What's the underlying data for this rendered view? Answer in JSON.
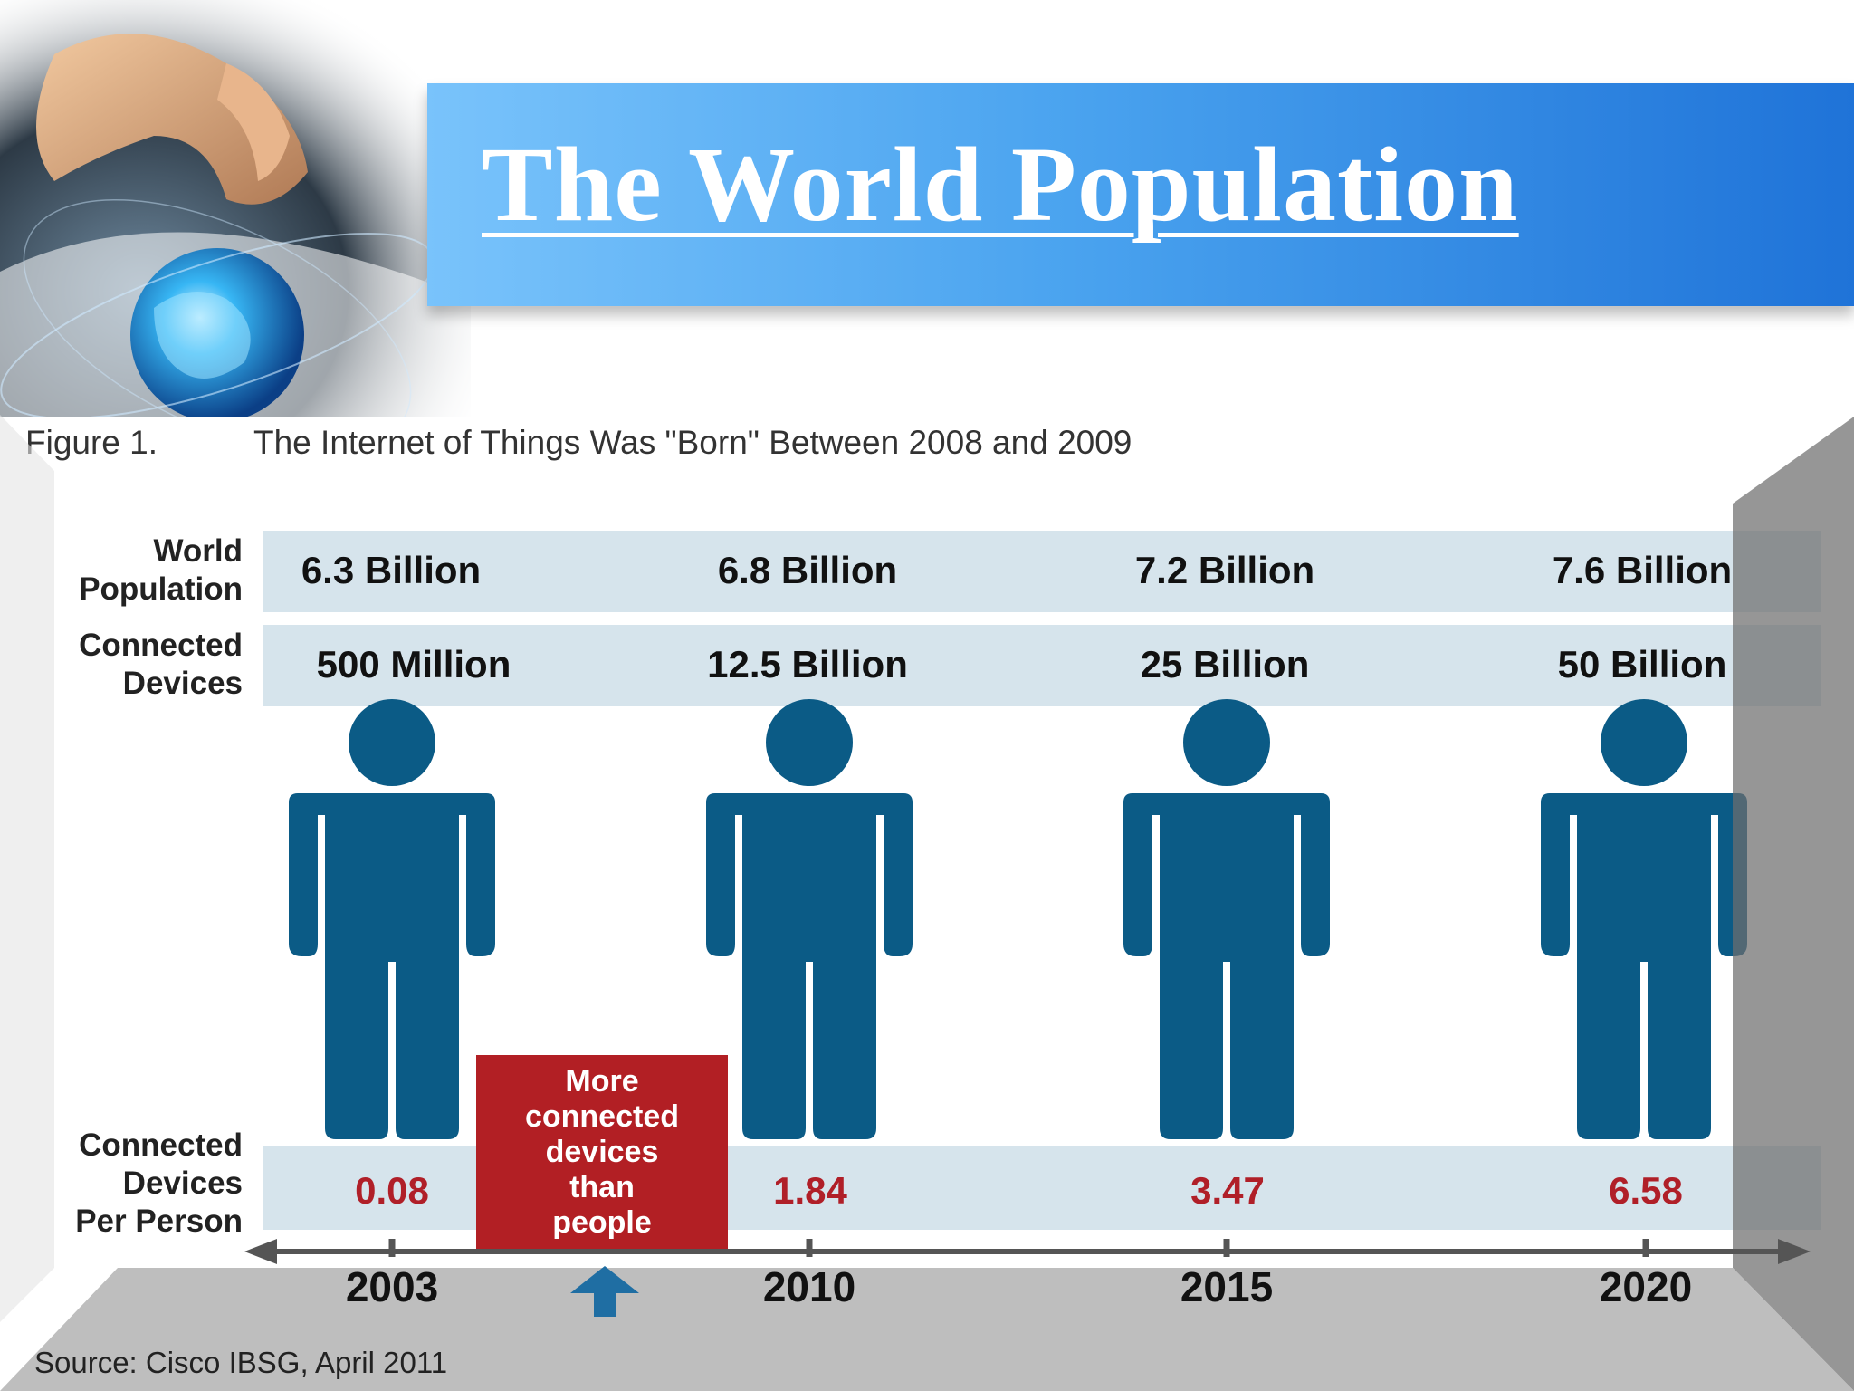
{
  "slide": {
    "title": " The World Population"
  },
  "figure": {
    "caption_number": "Figure 1.",
    "caption_title": "The Internet of Things Was \"Born\" Between 2008 and 2009",
    "source": "Source: Cisco IBSG, April 2011"
  },
  "colors": {
    "figure_blue": "#0b5b86",
    "band_fill": "#d6e4ec",
    "ratio_red": "#b01f28",
    "callout_red": "#b21f24",
    "title_band": "#3f9bee"
  },
  "chart_data": {
    "type": "table",
    "title": "The Internet of Things Was \"Born\" Between 2008 and 2009",
    "row_labels": {
      "population": [
        "World",
        "Population"
      ],
      "devices": [
        "Connected",
        "Devices"
      ],
      "per_person": [
        "Connected",
        "Devices",
        "Per Person"
      ]
    },
    "categories": [
      "2003",
      "2010",
      "2015",
      "2020"
    ],
    "series": [
      {
        "name": "World Population",
        "labels": [
          "6.3 Billion",
          "6.8 Billion",
          "7.2 Billion",
          "7.6 Billion"
        ],
        "values": [
          6.3,
          6.8,
          7.2,
          7.6
        ],
        "unit": "billion"
      },
      {
        "name": "Connected Devices",
        "labels": [
          "500 Million",
          "12.5 Billion",
          "25 Billion",
          "50 Billion"
        ],
        "values": [
          0.5,
          12.5,
          25,
          50
        ],
        "unit": "billion"
      },
      {
        "name": "Connected Devices Per Person",
        "labels": [
          "0.08",
          "1.84",
          "3.47",
          "6.58"
        ],
        "values": [
          0.08,
          1.84,
          3.47,
          6.58
        ]
      }
    ],
    "x_axis": {
      "type": "timeline",
      "marker_year_position": "between 2003 and 2010"
    },
    "annotation": "More\nconnected\ndevices\nthan\npeople",
    "icon": "person-icon"
  }
}
